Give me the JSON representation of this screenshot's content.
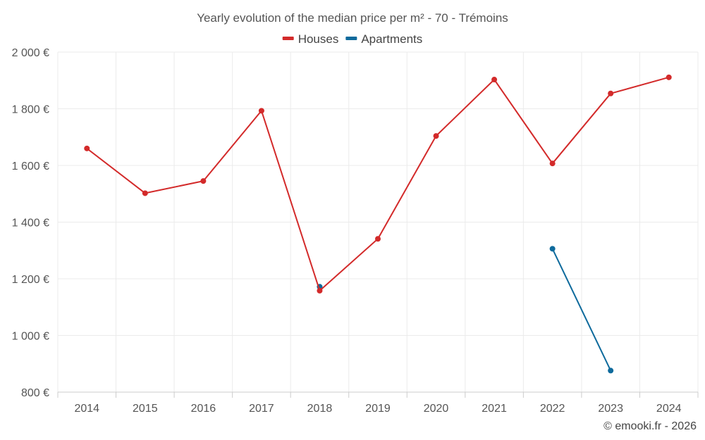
{
  "chart_data": {
    "type": "line",
    "title": "Yearly evolution of the median price per m² - 70 - Trémoins",
    "categories": [
      "2014",
      "2015",
      "2016",
      "2017",
      "2018",
      "2019",
      "2020",
      "2021",
      "2022",
      "2023",
      "2024"
    ],
    "series": [
      {
        "name": "Houses",
        "color": "#d32a2a",
        "values": [
          1660,
          1502,
          1545,
          1793,
          1158,
          1341,
          1704,
          1903,
          1607,
          1854,
          1911
        ]
      },
      {
        "name": "Apartments",
        "color": "#0e6a9c",
        "values": [
          null,
          null,
          null,
          null,
          1172,
          null,
          null,
          null,
          1306,
          876,
          null
        ]
      }
    ],
    "ylim": [
      800,
      2000
    ],
    "yticks": [
      2000,
      1800,
      1600,
      1400,
      1200,
      1000,
      800
    ],
    "ytick_labels": [
      "2 000 €",
      "1 800 €",
      "1 600 €",
      "1 400 €",
      "1 200 €",
      "1 000 €",
      "800 €"
    ],
    "legend_position": "top-center",
    "grid": true,
    "xlabel": "",
    "ylabel": ""
  },
  "credit": "© emooki.fr - 2026"
}
